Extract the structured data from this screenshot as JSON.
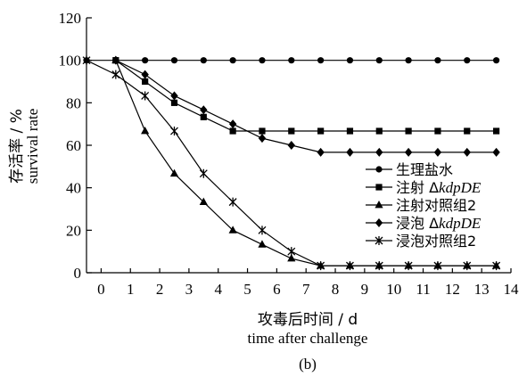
{
  "chart_data": {
    "type": "line",
    "panel_label": "(b)",
    "xlabel_cn": "攻毒后时间 / d",
    "xlabel_en": "time after challenge",
    "ylabel_cn": "存活率 / %",
    "ylabel_en": "survival rate",
    "xlim": [
      -0.5,
      14
    ],
    "ylim": [
      0,
      120
    ],
    "x_ticks": [
      0,
      1,
      2,
      3,
      4,
      5,
      6,
      7,
      8,
      9,
      10,
      11,
      12,
      13,
      14
    ],
    "y_ticks": [
      0,
      20,
      40,
      60,
      80,
      100,
      120
    ],
    "grid": false,
    "legend_position": "right-center",
    "series": [
      {
        "name_parts": [
          "生理盐水"
        ],
        "marker": "circle",
        "x": [
          -0.5,
          0.5,
          1.5,
          2.5,
          3.5,
          4.5,
          5.5,
          6.5,
          7.5,
          8.5,
          9.5,
          10.5,
          11.5,
          12.5,
          13.5
        ],
        "y": [
          100,
          100,
          100,
          100,
          100,
          100,
          100,
          100,
          100,
          100,
          100,
          100,
          100,
          100,
          100
        ]
      },
      {
        "name_parts": [
          "注射 Δ",
          "kdpDE"
        ],
        "marker": "square",
        "x": [
          0.5,
          1.5,
          2.5,
          3.5,
          4.5,
          5.5,
          6.5,
          7.5,
          8.5,
          9.5,
          10.5,
          11.5,
          12.5,
          13.5
        ],
        "y": [
          100,
          90,
          80,
          73.3,
          66.7,
          66.7,
          66.7,
          66.7,
          66.7,
          66.7,
          66.7,
          66.7,
          66.7,
          66.7
        ]
      },
      {
        "name_parts": [
          "注射对照组2"
        ],
        "marker": "triangle",
        "x": [
          0.5,
          1.5,
          2.5,
          3.5,
          4.5,
          5.5,
          6.5,
          7.5,
          8.5,
          9.5,
          10.5,
          11.5,
          12.5,
          13.5
        ],
        "y": [
          100,
          66.7,
          46.7,
          33.3,
          20,
          13.3,
          6.7,
          3.3,
          3.3,
          3.3,
          3.3,
          3.3,
          3.3,
          3.3
        ]
      },
      {
        "name_parts": [
          "浸泡 Δ",
          "kdpDE"
        ],
        "marker": "diamond",
        "x": [
          0.5,
          1.5,
          2.5,
          3.5,
          4.5,
          5.5,
          6.5,
          7.5,
          8.5,
          9.5,
          10.5,
          11.5,
          12.5,
          13.5
        ],
        "y": [
          100,
          93.3,
          83.3,
          76.7,
          70,
          63.3,
          60,
          56.7,
          56.7,
          56.7,
          56.7,
          56.7,
          56.7,
          56.7
        ]
      },
      {
        "name_parts": [
          "浸泡对照组2"
        ],
        "marker": "asterisk",
        "x": [
          -0.5,
          0.5,
          1.5,
          2.5,
          3.5,
          4.5,
          5.5,
          6.5,
          7.5,
          8.5,
          9.5,
          10.5,
          11.5,
          12.5,
          13.5
        ],
        "y": [
          100,
          93.3,
          83.3,
          66.7,
          46.7,
          33.3,
          20,
          10,
          3.3,
          3.3,
          3.3,
          3.3,
          3.3,
          3.3,
          3.3
        ]
      }
    ]
  }
}
